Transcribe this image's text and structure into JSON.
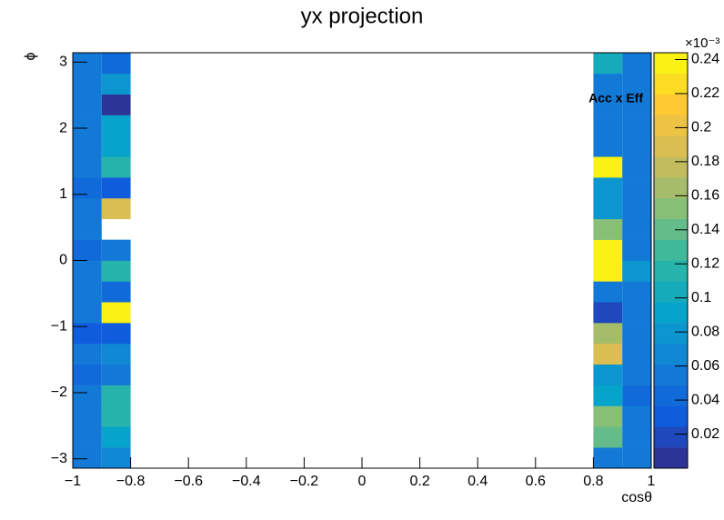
{
  "chart_data": {
    "type": "heatmap",
    "title": "yx projection",
    "x_label": "cosθ",
    "y_label": "ϕ",
    "annotation": "Acc x Eff",
    "z_multiplier": "×10⁻³",
    "colorscale": "bird",
    "xlim": [
      -1,
      1
    ],
    "ylim": [
      -3.1416,
      3.1416
    ],
    "zlim": [
      0,
      0.244
    ],
    "xticks": [
      {
        "value": -1,
        "label": "−1"
      },
      {
        "value": -0.8,
        "label": "−0.8"
      },
      {
        "value": -0.6,
        "label": "−0.6"
      },
      {
        "value": -0.4,
        "label": "−0.4"
      },
      {
        "value": -0.2,
        "label": "−0.2"
      },
      0,
      0.2,
      0.4,
      0.6,
      0.8,
      1
    ],
    "yticks": [
      {
        "value": -3,
        "label": "−3"
      },
      {
        "value": -2,
        "label": "−2"
      },
      {
        "value": -1,
        "label": "−1"
      },
      0,
      1,
      2,
      3
    ],
    "zticks": [
      0.02,
      0.04,
      0.06,
      0.08,
      0.1,
      0.12,
      0.14,
      0.16,
      0.18,
      0.2,
      0.22,
      0.24
    ],
    "series": [
      {
        "bins": [
          -1,
          -0.9
        ],
        "values": [
          0.05,
          0.06,
          0.06,
          0.05,
          0.04,
          0.06,
          0.03,
          0.05,
          0.05,
          0.05,
          0.04,
          0.06,
          0.06,
          0.04,
          0.06,
          0.06,
          0.06,
          0.05,
          0.05,
          0.06
        ]
      },
      {
        "bins": [
          -0.9,
          -0.8
        ],
        "values": [
          0.07,
          0.09,
          0.12,
          0.12,
          0.05,
          0.07,
          0.03,
          0.24,
          0.04,
          0.12,
          0.05,
          null,
          0.19,
          0.03,
          0.11,
          0.09,
          0.09,
          0.01,
          0.08,
          0.04
        ]
      },
      {
        "bins": [
          0.8,
          0.9
        ],
        "values": [
          0.06,
          0.14,
          0.15,
          0.09,
          0.08,
          0.19,
          0.17,
          0.02,
          0.06,
          0.24,
          0.24,
          0.15,
          0.08,
          0.08,
          0.24,
          0.05,
          0.06,
          0.06,
          0.06,
          0.1
        ]
      },
      {
        "bins": [
          0.9,
          1
        ],
        "values": [
          0.06,
          0.06,
          0.06,
          0.04,
          0.05,
          0.05,
          0.06,
          0.05,
          0.06,
          0.08,
          0.05,
          0.06,
          0.06,
          0.05,
          0.06,
          0.05,
          0.05,
          0.06,
          0.05,
          0.05
        ]
      }
    ]
  }
}
